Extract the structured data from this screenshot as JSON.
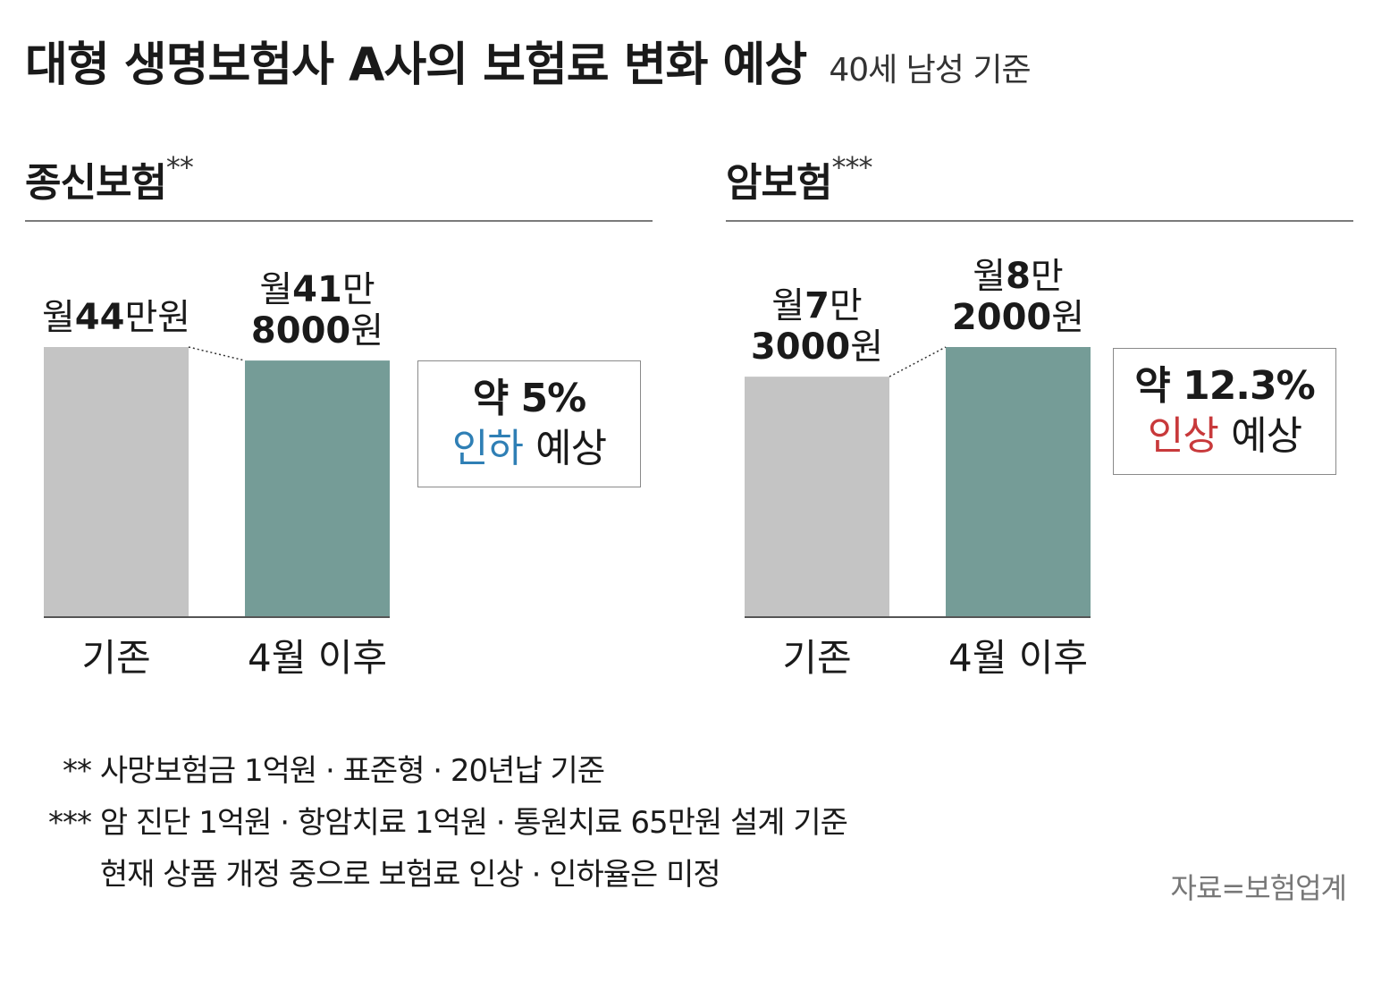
{
  "title": "대형 생명보험사 A사의 보험료 변화 예상",
  "subtitle": "40세 남성 기준",
  "colors": {
    "base": "#c4c4c4",
    "after": "#759c97",
    "decrease": "#2f7fb5",
    "increase": "#c8393b"
  },
  "chart_data": [
    {
      "type": "bar",
      "title": "종신보험",
      "title_mark": "**",
      "categories": [
        "기존",
        "4월 이후"
      ],
      "values": [
        440000,
        418000
      ],
      "units": "원",
      "value_labels": [
        [
          "월",
          "44",
          "만원"
        ],
        [
          "월",
          "41",
          "만",
          "8000",
          "원"
        ]
      ],
      "callout": {
        "prefix": "약",
        "value": "5%",
        "direction": "인하",
        "suffix": "예상"
      }
    },
    {
      "type": "bar",
      "title": "암보험",
      "title_mark": "***",
      "categories": [
        "기존",
        "4월 이후"
      ],
      "values": [
        73000,
        82000
      ],
      "units": "원",
      "value_labels": [
        [
          "월",
          "7",
          "만",
          "3000",
          "원"
        ],
        [
          "월",
          "8",
          "만",
          "2000",
          "원"
        ]
      ],
      "callout": {
        "prefix": "약",
        "value": "12.3%",
        "direction": "인상",
        "suffix": "예상"
      }
    }
  ],
  "notes": [
    {
      "mark": "**",
      "text": "사망보험금 1억원 · 표준형 · 20년납 기준"
    },
    {
      "mark": "***",
      "text": "암 진단 1억원 · 항암치료 1억원 · 통원치료 65만원 설계 기준"
    },
    {
      "mark": "",
      "text": "현재 상품 개정 중으로 보험료 인상 · 인하율은 미정"
    }
  ],
  "source": "자료=보험업계"
}
